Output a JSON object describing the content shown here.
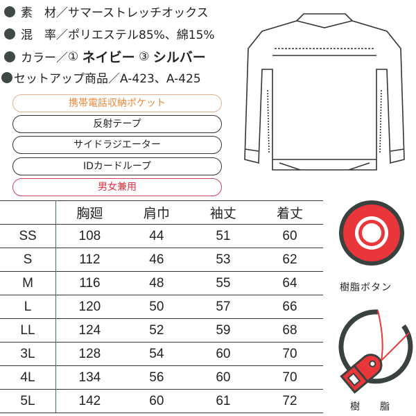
{
  "specs": {
    "material": {
      "label": "素　材",
      "sep": "／",
      "value": "サマーストレッチオックス"
    },
    "blend": {
      "label": "混　率",
      "sep": "／",
      "value": "ポリエステル85%、綿15%"
    },
    "color": {
      "label": "カラー",
      "sep": "／",
      "c1_num": "①",
      "c1": "ネイビー",
      "c3_num": "③",
      "c3": "シルバー"
    },
    "setup": {
      "label": "セットアップ商品",
      "sep": "／",
      "value": "A-423、A-425"
    }
  },
  "features": [
    {
      "label": "携帯電話収納ポケット",
      "color": "#e8893a",
      "border": "#e0b090"
    },
    {
      "label": "反射テープ",
      "color": "#222",
      "border": "#333"
    },
    {
      "label": "サイドラジエーター",
      "color": "#222",
      "border": "#333"
    },
    {
      "label": "IDカードループ",
      "color": "#222",
      "border": "#333"
    },
    {
      "label": "男女兼用",
      "color": "#e03040",
      "border": "#d04060"
    }
  ],
  "size_table": {
    "headers": [
      "",
      "胸廻",
      "肩巾",
      "袖丈",
      "着丈"
    ],
    "rows": [
      [
        "SS",
        "108",
        "44",
        "51",
        "60"
      ],
      [
        "S",
        "112",
        "46",
        "53",
        "62"
      ],
      [
        "M",
        "116",
        "48",
        "55",
        "64"
      ],
      [
        "L",
        "120",
        "50",
        "57",
        "66"
      ],
      [
        "LL",
        "124",
        "52",
        "59",
        "68"
      ],
      [
        "3L",
        "128",
        "54",
        "60",
        "70"
      ],
      [
        "4L",
        "134",
        "56",
        "60",
        "70"
      ],
      [
        "5L",
        "142",
        "60",
        "61",
        "72"
      ]
    ]
  },
  "icons": {
    "button_caption": "樹脂ボタン",
    "zipper_caption_1": "樹",
    "zipper_caption_2": "脂",
    "accent": "#e8363a",
    "dark": "#3a423f"
  }
}
